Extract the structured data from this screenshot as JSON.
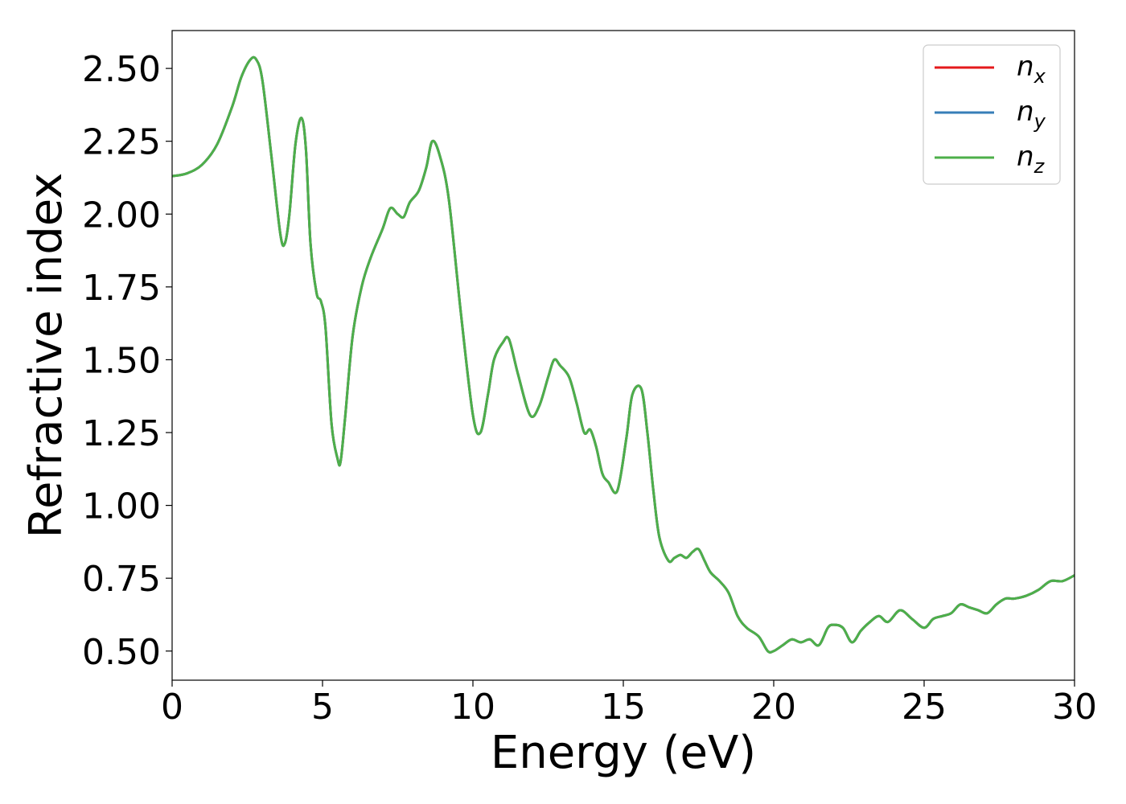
{
  "chart_data": {
    "type": "line",
    "xlabel": "Energy (eV)",
    "ylabel": "Refractive index",
    "xlim": [
      0,
      30
    ],
    "ylim": [
      0.4,
      2.63
    ],
    "xticks": [
      0,
      5,
      10,
      15,
      20,
      25,
      30
    ],
    "xtick_labels": [
      "0",
      "5",
      "10",
      "15",
      "20",
      "25",
      "30"
    ],
    "yticks": [
      0.5,
      0.75,
      1.0,
      1.25,
      1.5,
      1.75,
      2.0,
      2.25,
      2.5
    ],
    "ytick_labels": [
      "0.50",
      "0.75",
      "1.00",
      "1.25",
      "1.50",
      "1.75",
      "2.00",
      "2.25",
      "2.50"
    ],
    "grid": false,
    "legend_position": "top-right",
    "series": [
      {
        "name": "n_x",
        "label_base": "n",
        "label_sub": "x",
        "color": "#e41a1c",
        "x": [
          0,
          0.5,
          1.0,
          1.5,
          2.0,
          2.3,
          2.6,
          2.8,
          3.0,
          3.3,
          3.6,
          3.75,
          3.9,
          4.1,
          4.3,
          4.45,
          4.6,
          4.8,
          4.95,
          5.1,
          5.3,
          5.5,
          5.6,
          5.75,
          6.0,
          6.3,
          6.6,
          7.0,
          7.25,
          7.5,
          7.7,
          7.9,
          8.2,
          8.45,
          8.65,
          8.9,
          9.2,
          9.6,
          10.0,
          10.25,
          10.5,
          10.7,
          11.0,
          11.2,
          11.5,
          11.9,
          12.2,
          12.5,
          12.7,
          12.9,
          13.2,
          13.45,
          13.7,
          13.9,
          14.1,
          14.3,
          14.5,
          14.8,
          15.1,
          15.3,
          15.6,
          15.8,
          16.0,
          16.2,
          16.5,
          16.7,
          16.9,
          17.1,
          17.3,
          17.5,
          17.7,
          17.9,
          18.2,
          18.5,
          18.8,
          19.1,
          19.5,
          19.8,
          20.0,
          20.3,
          20.6,
          20.9,
          21.2,
          21.5,
          21.8,
          22.0,
          22.3,
          22.6,
          22.9,
          23.2,
          23.5,
          23.8,
          24.2,
          24.6,
          25.0,
          25.3,
          25.6,
          25.9,
          26.2,
          26.5,
          26.8,
          27.1,
          27.4,
          27.7,
          28.0,
          28.4,
          28.8,
          29.2,
          29.6,
          30.0
        ],
        "y": [
          2.13,
          2.14,
          2.17,
          2.24,
          2.37,
          2.47,
          2.53,
          2.53,
          2.46,
          2.2,
          1.93,
          1.9,
          2.0,
          2.24,
          2.33,
          2.22,
          1.9,
          1.73,
          1.7,
          1.61,
          1.28,
          1.16,
          1.15,
          1.3,
          1.58,
          1.75,
          1.85,
          1.95,
          2.02,
          2.0,
          1.99,
          2.04,
          2.08,
          2.16,
          2.25,
          2.2,
          2.05,
          1.66,
          1.31,
          1.25,
          1.38,
          1.5,
          1.56,
          1.57,
          1.45,
          1.31,
          1.34,
          1.44,
          1.5,
          1.48,
          1.44,
          1.35,
          1.25,
          1.26,
          1.2,
          1.11,
          1.08,
          1.05,
          1.23,
          1.38,
          1.4,
          1.25,
          1.05,
          0.89,
          0.81,
          0.82,
          0.83,
          0.82,
          0.84,
          0.85,
          0.81,
          0.77,
          0.74,
          0.7,
          0.62,
          0.58,
          0.55,
          0.5,
          0.5,
          0.52,
          0.54,
          0.53,
          0.54,
          0.52,
          0.58,
          0.59,
          0.58,
          0.53,
          0.57,
          0.6,
          0.62,
          0.6,
          0.64,
          0.61,
          0.58,
          0.61,
          0.62,
          0.63,
          0.66,
          0.65,
          0.64,
          0.63,
          0.66,
          0.68,
          0.68,
          0.69,
          0.71,
          0.74,
          0.74,
          0.76
        ]
      },
      {
        "name": "n_y",
        "label_base": "n",
        "label_sub": "y",
        "color": "#377eb8",
        "x": [
          0,
          0.5,
          1.0,
          1.5,
          2.0,
          2.3,
          2.6,
          2.8,
          3.0,
          3.3,
          3.6,
          3.75,
          3.9,
          4.1,
          4.3,
          4.45,
          4.6,
          4.8,
          4.95,
          5.1,
          5.3,
          5.5,
          5.6,
          5.75,
          6.0,
          6.3,
          6.6,
          7.0,
          7.25,
          7.5,
          7.7,
          7.9,
          8.2,
          8.45,
          8.65,
          8.9,
          9.2,
          9.6,
          10.0,
          10.25,
          10.5,
          10.7,
          11.0,
          11.2,
          11.5,
          11.9,
          12.2,
          12.5,
          12.7,
          12.9,
          13.2,
          13.45,
          13.7,
          13.9,
          14.1,
          14.3,
          14.5,
          14.8,
          15.1,
          15.3,
          15.6,
          15.8,
          16.0,
          16.2,
          16.5,
          16.7,
          16.9,
          17.1,
          17.3,
          17.5,
          17.7,
          17.9,
          18.2,
          18.5,
          18.8,
          19.1,
          19.5,
          19.8,
          20.0,
          20.3,
          20.6,
          20.9,
          21.2,
          21.5,
          21.8,
          22.0,
          22.3,
          22.6,
          22.9,
          23.2,
          23.5,
          23.8,
          24.2,
          24.6,
          25.0,
          25.3,
          25.6,
          25.9,
          26.2,
          26.5,
          26.8,
          27.1,
          27.4,
          27.7,
          28.0,
          28.4,
          28.8,
          29.2,
          29.6,
          30.0
        ],
        "y": [
          2.13,
          2.14,
          2.17,
          2.24,
          2.37,
          2.47,
          2.53,
          2.53,
          2.46,
          2.2,
          1.93,
          1.9,
          2.0,
          2.24,
          2.33,
          2.22,
          1.9,
          1.73,
          1.7,
          1.61,
          1.28,
          1.16,
          1.15,
          1.3,
          1.58,
          1.75,
          1.85,
          1.95,
          2.02,
          2.0,
          1.99,
          2.04,
          2.08,
          2.16,
          2.25,
          2.2,
          2.05,
          1.66,
          1.31,
          1.25,
          1.38,
          1.5,
          1.56,
          1.57,
          1.45,
          1.31,
          1.34,
          1.44,
          1.5,
          1.48,
          1.44,
          1.35,
          1.25,
          1.26,
          1.2,
          1.11,
          1.08,
          1.05,
          1.23,
          1.38,
          1.4,
          1.25,
          1.05,
          0.89,
          0.81,
          0.82,
          0.83,
          0.82,
          0.84,
          0.85,
          0.81,
          0.77,
          0.74,
          0.7,
          0.62,
          0.58,
          0.55,
          0.5,
          0.5,
          0.52,
          0.54,
          0.53,
          0.54,
          0.52,
          0.58,
          0.59,
          0.58,
          0.53,
          0.57,
          0.6,
          0.62,
          0.6,
          0.64,
          0.61,
          0.58,
          0.61,
          0.62,
          0.63,
          0.66,
          0.65,
          0.64,
          0.63,
          0.66,
          0.68,
          0.68,
          0.69,
          0.71,
          0.74,
          0.74,
          0.76
        ]
      },
      {
        "name": "n_z",
        "label_base": "n",
        "label_sub": "z",
        "color": "#4daf4a",
        "x": [
          0,
          0.5,
          1.0,
          1.5,
          2.0,
          2.3,
          2.6,
          2.8,
          3.0,
          3.3,
          3.6,
          3.75,
          3.9,
          4.1,
          4.3,
          4.45,
          4.6,
          4.8,
          4.95,
          5.1,
          5.3,
          5.5,
          5.6,
          5.75,
          6.0,
          6.3,
          6.6,
          7.0,
          7.25,
          7.5,
          7.7,
          7.9,
          8.2,
          8.45,
          8.65,
          8.9,
          9.2,
          9.6,
          10.0,
          10.25,
          10.5,
          10.7,
          11.0,
          11.2,
          11.5,
          11.9,
          12.2,
          12.5,
          12.7,
          12.9,
          13.2,
          13.45,
          13.7,
          13.9,
          14.1,
          14.3,
          14.5,
          14.8,
          15.1,
          15.3,
          15.6,
          15.8,
          16.0,
          16.2,
          16.5,
          16.7,
          16.9,
          17.1,
          17.3,
          17.5,
          17.7,
          17.9,
          18.2,
          18.5,
          18.8,
          19.1,
          19.5,
          19.8,
          20.0,
          20.3,
          20.6,
          20.9,
          21.2,
          21.5,
          21.8,
          22.0,
          22.3,
          22.6,
          22.9,
          23.2,
          23.5,
          23.8,
          24.2,
          24.6,
          25.0,
          25.3,
          25.6,
          25.9,
          26.2,
          26.5,
          26.8,
          27.1,
          27.4,
          27.7,
          28.0,
          28.4,
          28.8,
          29.2,
          29.6,
          30.0
        ],
        "y": [
          2.13,
          2.14,
          2.17,
          2.24,
          2.37,
          2.47,
          2.53,
          2.53,
          2.46,
          2.2,
          1.93,
          1.9,
          2.0,
          2.24,
          2.33,
          2.22,
          1.9,
          1.73,
          1.7,
          1.61,
          1.28,
          1.16,
          1.15,
          1.3,
          1.58,
          1.75,
          1.85,
          1.95,
          2.02,
          2.0,
          1.99,
          2.04,
          2.08,
          2.16,
          2.25,
          2.2,
          2.05,
          1.66,
          1.31,
          1.25,
          1.38,
          1.5,
          1.56,
          1.57,
          1.45,
          1.31,
          1.34,
          1.44,
          1.5,
          1.48,
          1.44,
          1.35,
          1.25,
          1.26,
          1.2,
          1.11,
          1.08,
          1.05,
          1.23,
          1.38,
          1.4,
          1.25,
          1.05,
          0.89,
          0.81,
          0.82,
          0.83,
          0.82,
          0.84,
          0.85,
          0.81,
          0.77,
          0.74,
          0.7,
          0.62,
          0.58,
          0.55,
          0.5,
          0.5,
          0.52,
          0.54,
          0.53,
          0.54,
          0.52,
          0.58,
          0.59,
          0.58,
          0.53,
          0.57,
          0.6,
          0.62,
          0.6,
          0.64,
          0.61,
          0.58,
          0.61,
          0.62,
          0.63,
          0.66,
          0.65,
          0.64,
          0.63,
          0.66,
          0.68,
          0.68,
          0.69,
          0.71,
          0.74,
          0.74,
          0.76
        ]
      }
    ]
  }
}
